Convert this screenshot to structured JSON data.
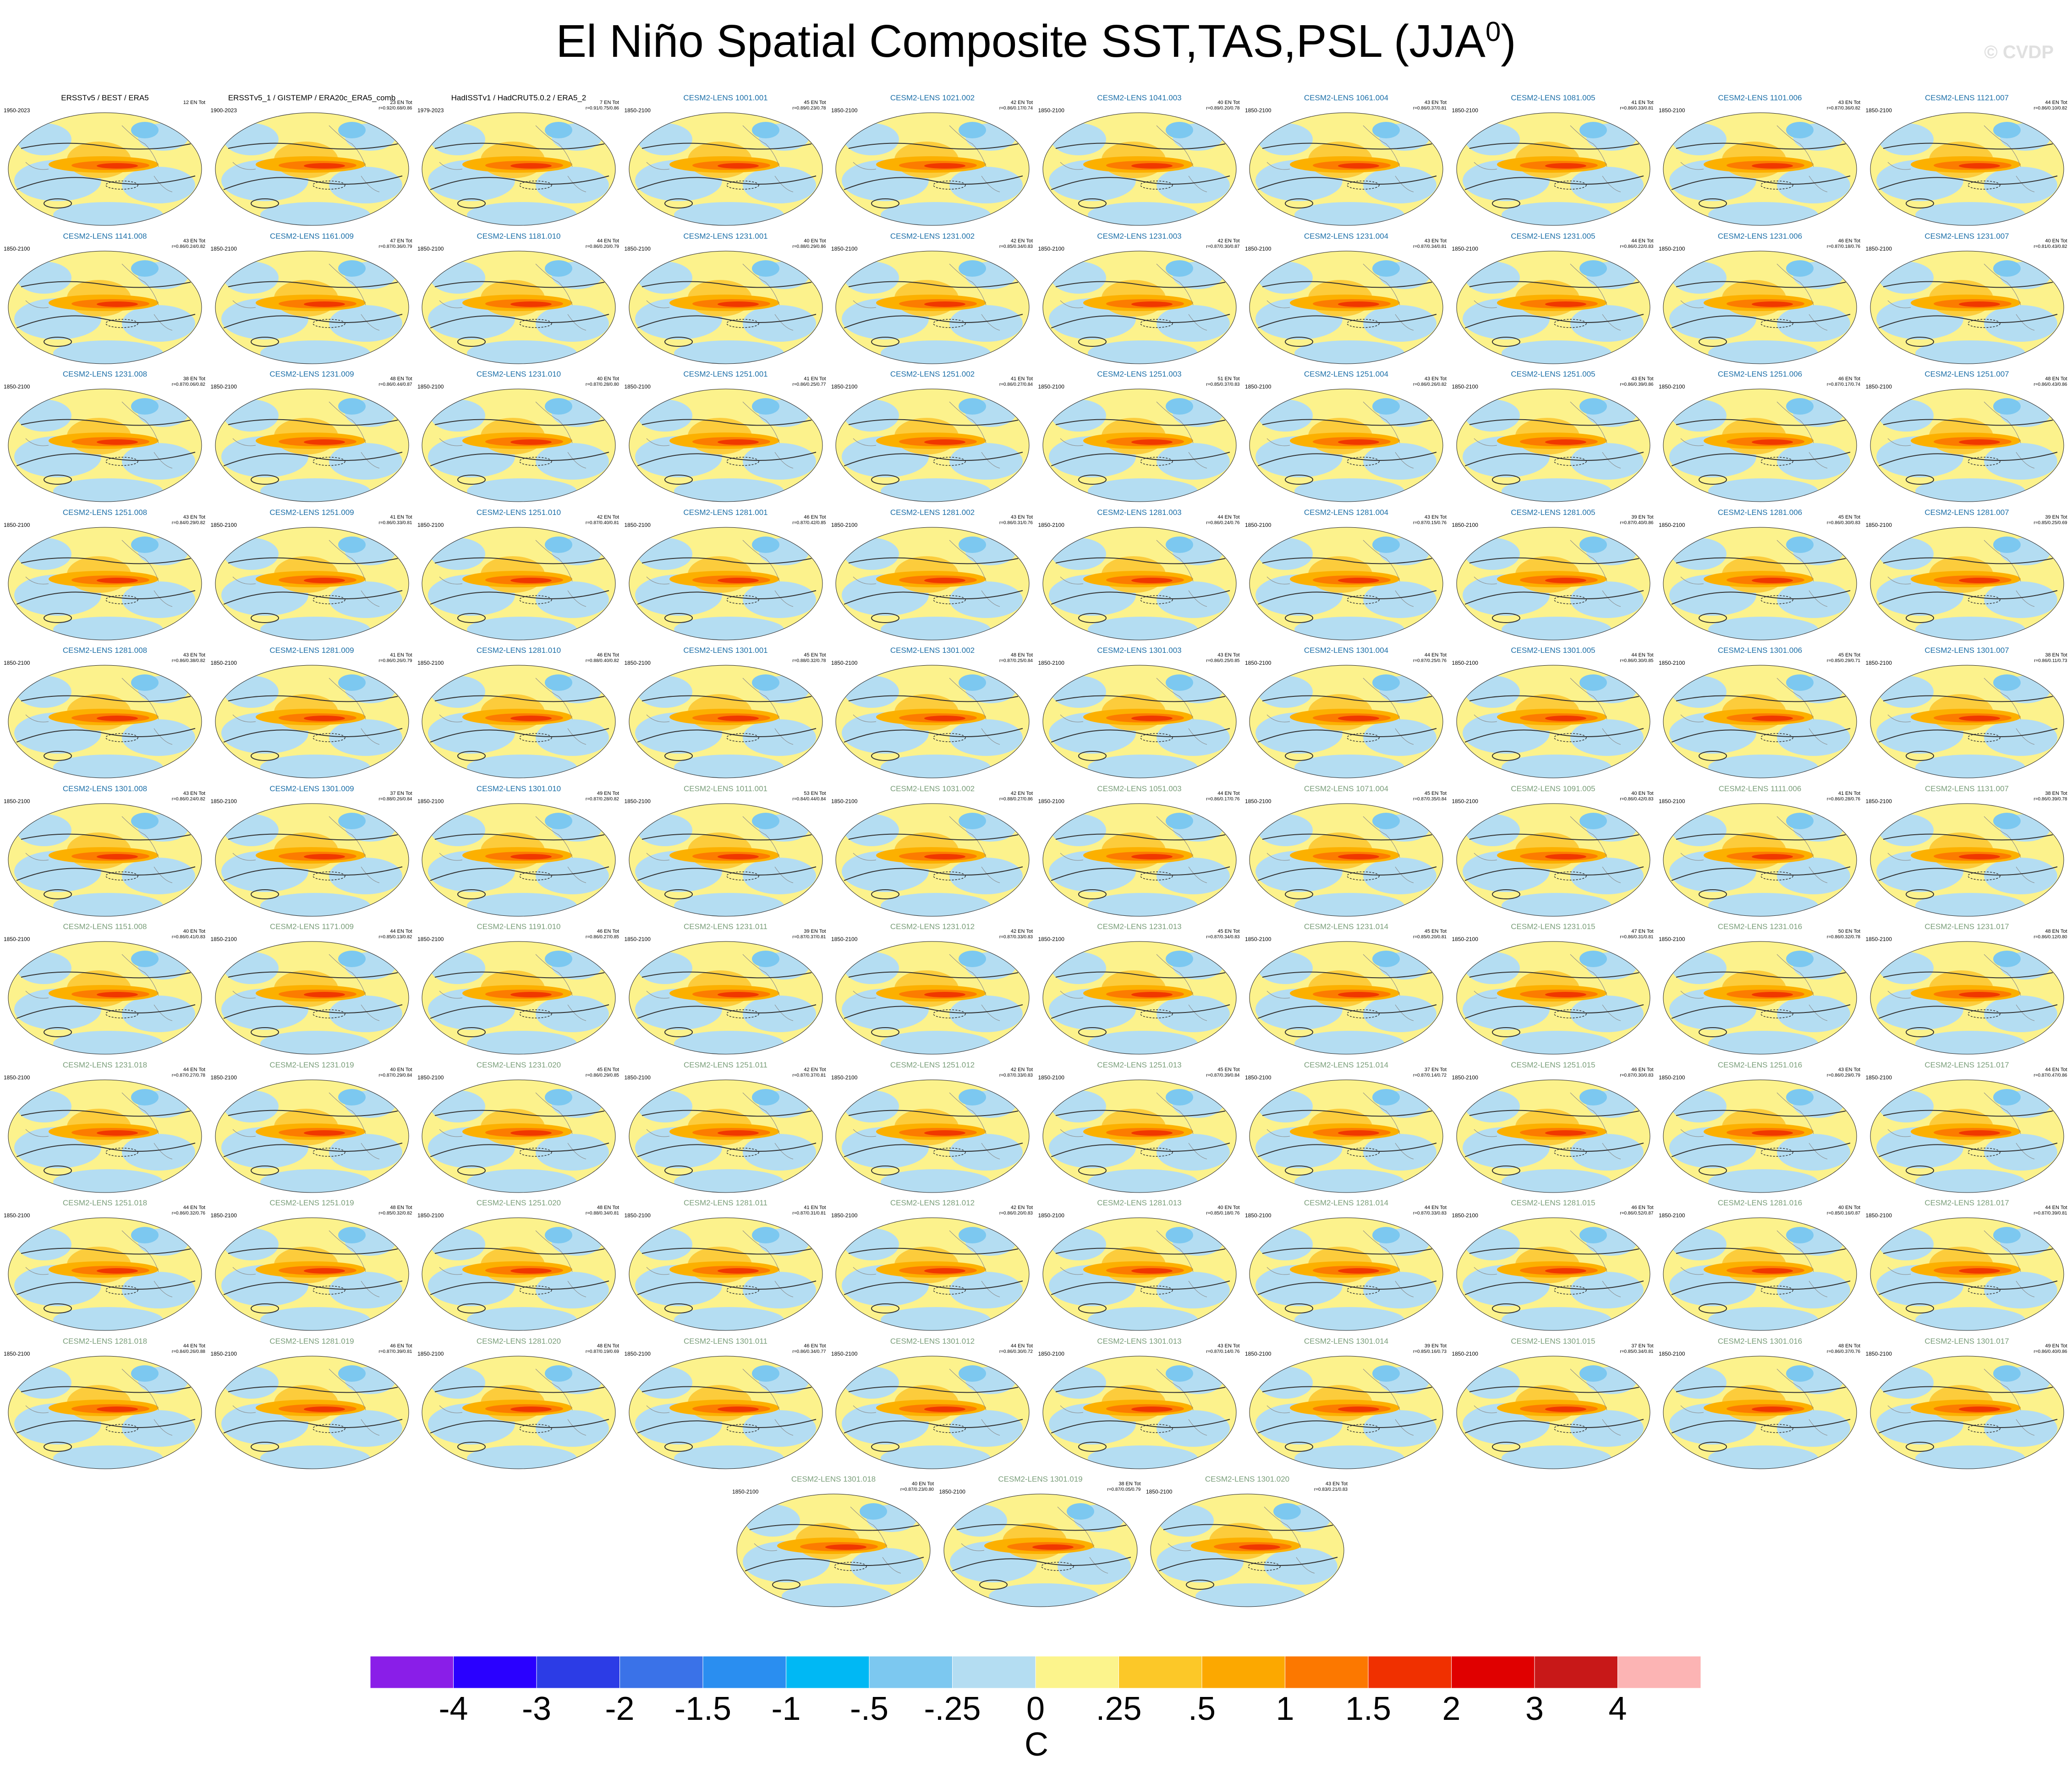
{
  "title": "El Niño Spatial Composite SST,TAS,PSL (JJA",
  "title_sup": "0",
  "title_close": ")",
  "watermark": "© CVDP",
  "panels": [
    {
      "title": "ERSSTv5 / BEST / ERA5",
      "years": "1950-2023",
      "count": "12 EN Tot",
      "r": "",
      "style": "obs"
    },
    {
      "title": "ERSSTv5_1 / GISTEMP / ERA20c_ERA5_comb",
      "years": "1900-2023",
      "count": "23 EN Tot",
      "r": "r=0.92/0.68/0.86",
      "style": "obs"
    },
    {
      "title": "HadISSTv1 / HadCRUT5.0.2 / ERA5_2",
      "years": "1979-2023",
      "count": "7 EN Tot",
      "r": "r=0.91/0.75/0.86",
      "style": "obs"
    },
    {
      "title": "CESM2-LENS 1001.001",
      "years": "1850-2100",
      "count": "45 EN Tot",
      "r": "r=0.89/0.23/0.78",
      "style": "c1"
    },
    {
      "title": "CESM2-LENS 1021.002",
      "years": "1850-2100",
      "count": "42 EN Tot",
      "r": "r=0.86/0.17/0.74",
      "style": "c1"
    },
    {
      "title": "CESM2-LENS 1041.003",
      "years": "1850-2100",
      "count": "40 EN Tot",
      "r": "r=0.89/0.20/0.78",
      "style": "c1"
    },
    {
      "title": "CESM2-LENS 1061.004",
      "years": "1850-2100",
      "count": "43 EN Tot",
      "r": "r=0.86/0.37/0.81",
      "style": "c1"
    },
    {
      "title": "CESM2-LENS 1081.005",
      "years": "1850-2100",
      "count": "41 EN Tot",
      "r": "r=0.86/0.33/0.81",
      "style": "c1"
    },
    {
      "title": "CESM2-LENS 1101.006",
      "years": "1850-2100",
      "count": "43 EN Tot",
      "r": "r=0.87/0.36/0.82",
      "style": "c1"
    },
    {
      "title": "CESM2-LENS 1121.007",
      "years": "1850-2100",
      "count": "44 EN Tot",
      "r": "r=0.86/0.10/0.82",
      "style": "c1"
    },
    {
      "title": "CESM2-LENS 1141.008",
      "years": "1850-2100",
      "count": "43 EN Tot",
      "r": "r=0.86/0.24/0.82",
      "style": "c1"
    },
    {
      "title": "CESM2-LENS 1161.009",
      "years": "1850-2100",
      "count": "47 EN Tot",
      "r": "r=0.87/0.36/0.79",
      "style": "c1"
    },
    {
      "title": "CESM2-LENS 1181.010",
      "years": "1850-2100",
      "count": "44 EN Tot",
      "r": "r=0.86/0.20/0.79",
      "style": "c1"
    },
    {
      "title": "CESM2-LENS 1231.001",
      "years": "1850-2100",
      "count": "40 EN Tot",
      "r": "r=0.88/0.29/0.86",
      "style": "c1"
    },
    {
      "title": "CESM2-LENS 1231.002",
      "years": "1850-2100",
      "count": "42 EN Tot",
      "r": "r=0.85/0.34/0.83",
      "style": "c1"
    },
    {
      "title": "CESM2-LENS 1231.003",
      "years": "1850-2100",
      "count": "42 EN Tot",
      "r": "r=0.87/0.30/0.87",
      "style": "c1"
    },
    {
      "title": "CESM2-LENS 1231.004",
      "years": "1850-2100",
      "count": "43 EN Tot",
      "r": "r=0.87/0.34/0.81",
      "style": "c1"
    },
    {
      "title": "CESM2-LENS 1231.005",
      "years": "1850-2100",
      "count": "44 EN Tot",
      "r": "r=0.86/0.22/0.83",
      "style": "c1"
    },
    {
      "title": "CESM2-LENS 1231.006",
      "years": "1850-2100",
      "count": "46 EN Tot",
      "r": "r=0.87/0.18/0.76",
      "style": "c1"
    },
    {
      "title": "CESM2-LENS 1231.007",
      "years": "1850-2100",
      "count": "40 EN Tot",
      "r": "r=0.81/0.43/0.82",
      "style": "c1"
    },
    {
      "title": "CESM2-LENS 1231.008",
      "years": "1850-2100",
      "count": "38 EN Tot",
      "r": "r=0.87/0.06/0.82",
      "style": "c1"
    },
    {
      "title": "CESM2-LENS 1231.009",
      "years": "1850-2100",
      "count": "48 EN Tot",
      "r": "r=0.86/0.44/0.87",
      "style": "c1"
    },
    {
      "title": "CESM2-LENS 1231.010",
      "years": "1850-2100",
      "count": "40 EN Tot",
      "r": "r=0.87/0.28/0.80",
      "style": "c1"
    },
    {
      "title": "CESM2-LENS 1251.001",
      "years": "1850-2100",
      "count": "41 EN Tot",
      "r": "r=0.86/0.25/0.77",
      "style": "c1"
    },
    {
      "title": "CESM2-LENS 1251.002",
      "years": "1850-2100",
      "count": "41 EN Tot",
      "r": "r=0.86/0.27/0.84",
      "style": "c1"
    },
    {
      "title": "CESM2-LENS 1251.003",
      "years": "1850-2100",
      "count": "51 EN Tot",
      "r": "r=0.85/0.37/0.83",
      "style": "c1"
    },
    {
      "title": "CESM2-LENS 1251.004",
      "years": "1850-2100",
      "count": "43 EN Tot",
      "r": "r=0.86/0.26/0.82",
      "style": "c1"
    },
    {
      "title": "CESM2-LENS 1251.005",
      "years": "1850-2100",
      "count": "43 EN Tot",
      "r": "r=0.86/0.39/0.86",
      "style": "c1"
    },
    {
      "title": "CESM2-LENS 1251.006",
      "years": "1850-2100",
      "count": "46 EN Tot",
      "r": "r=0.87/0.17/0.74",
      "style": "c1"
    },
    {
      "title": "CESM2-LENS 1251.007",
      "years": "1850-2100",
      "count": "48 EN Tot",
      "r": "r=0.86/0.43/0.86",
      "style": "c1"
    },
    {
      "title": "CESM2-LENS 1251.008",
      "years": "1850-2100",
      "count": "43 EN Tot",
      "r": "r=0.84/0.29/0.82",
      "style": "c1"
    },
    {
      "title": "CESM2-LENS 1251.009",
      "years": "1850-2100",
      "count": "41 EN Tot",
      "r": "r=0.86/0.33/0.81",
      "style": "c1"
    },
    {
      "title": "CESM2-LENS 1251.010",
      "years": "1850-2100",
      "count": "42 EN Tot",
      "r": "r=0.87/0.40/0.81",
      "style": "c1"
    },
    {
      "title": "CESM2-LENS 1281.001",
      "years": "1850-2100",
      "count": "46 EN Tot",
      "r": "r=0.87/0.42/0.85",
      "style": "c1"
    },
    {
      "title": "CESM2-LENS 1281.002",
      "years": "1850-2100",
      "count": "43 EN Tot",
      "r": "r=0.86/0.31/0.76",
      "style": "c1"
    },
    {
      "title": "CESM2-LENS 1281.003",
      "years": "1850-2100",
      "count": "44 EN Tot",
      "r": "r=0.86/0.24/0.76",
      "style": "c1"
    },
    {
      "title": "CESM2-LENS 1281.004",
      "years": "1850-2100",
      "count": "43 EN Tot",
      "r": "r=0.87/0.15/0.76",
      "style": "c1"
    },
    {
      "title": "CESM2-LENS 1281.005",
      "years": "1850-2100",
      "count": "39 EN Tot",
      "r": "r=0.87/0.40/0.86",
      "style": "c1"
    },
    {
      "title": "CESM2-LENS 1281.006",
      "years": "1850-2100",
      "count": "45 EN Tot",
      "r": "r=0.86/0.30/0.83",
      "style": "c1"
    },
    {
      "title": "CESM2-LENS 1281.007",
      "years": "1850-2100",
      "count": "39 EN Tot",
      "r": "r=0.85/0.25/0.69",
      "style": "c1"
    },
    {
      "title": "CESM2-LENS 1281.008",
      "years": "1850-2100",
      "count": "43 EN Tot",
      "r": "r=0.86/0.38/0.82",
      "style": "c1"
    },
    {
      "title": "CESM2-LENS 1281.009",
      "years": "1850-2100",
      "count": "41 EN Tot",
      "r": "r=0.86/0.26/0.79",
      "style": "c1"
    },
    {
      "title": "CESM2-LENS 1281.010",
      "years": "1850-2100",
      "count": "46 EN Tot",
      "r": "r=0.88/0.40/0.82",
      "style": "c1"
    },
    {
      "title": "CESM2-LENS 1301.001",
      "years": "1850-2100",
      "count": "45 EN Tot",
      "r": "r=0.88/0.32/0.78",
      "style": "c1"
    },
    {
      "title": "CESM2-LENS 1301.002",
      "years": "1850-2100",
      "count": "48 EN Tot",
      "r": "r=0.87/0.25/0.84",
      "style": "c1"
    },
    {
      "title": "CESM2-LENS 1301.003",
      "years": "1850-2100",
      "count": "43 EN Tot",
      "r": "r=0.86/0.25/0.85",
      "style": "c1"
    },
    {
      "title": "CESM2-LENS 1301.004",
      "years": "1850-2100",
      "count": "44 EN Tot",
      "r": "r=0.87/0.25/0.76",
      "style": "c1"
    },
    {
      "title": "CESM2-LENS 1301.005",
      "years": "1850-2100",
      "count": "44 EN Tot",
      "r": "r=0.86/0.30/0.85",
      "style": "c1"
    },
    {
      "title": "CESM2-LENS 1301.006",
      "years": "1850-2100",
      "count": "45 EN Tot",
      "r": "r=0.85/0.29/0.71",
      "style": "c1"
    },
    {
      "title": "CESM2-LENS 1301.007",
      "years": "1850-2100",
      "count": "38 EN Tot",
      "r": "r=0.86/0.11/0.73",
      "style": "c1"
    },
    {
      "title": "CESM2-LENS 1301.008",
      "years": "1850-2100",
      "count": "43 EN Tot",
      "r": "r=0.86/0.24/0.82",
      "style": "c1"
    },
    {
      "title": "CESM2-LENS 1301.009",
      "years": "1850-2100",
      "count": "37 EN Tot",
      "r": "r=0.88/0.26/0.84",
      "style": "c1"
    },
    {
      "title": "CESM2-LENS 1301.010",
      "years": "1850-2100",
      "count": "49 EN Tot",
      "r": "r=0.87/0.28/0.82",
      "style": "c1"
    },
    {
      "title": "CESM2-LENS 1011.001",
      "years": "1850-2100",
      "count": "53 EN Tot",
      "r": "r=0.84/0.44/0.84",
      "style": "c2"
    },
    {
      "title": "CESM2-LENS 1031.002",
      "years": "1850-2100",
      "count": "42 EN Tot",
      "r": "r=0.88/0.27/0.86",
      "style": "c2"
    },
    {
      "title": "CESM2-LENS 1051.003",
      "years": "1850-2100",
      "count": "44 EN Tot",
      "r": "r=0.86/0.17/0.76",
      "style": "c2"
    },
    {
      "title": "CESM2-LENS 1071.004",
      "years": "1850-2100",
      "count": "45 EN Tot",
      "r": "r=0.87/0.35/0.84",
      "style": "c2"
    },
    {
      "title": "CESM2-LENS 1091.005",
      "years": "1850-2100",
      "count": "40 EN Tot",
      "r": "r=0.86/0.42/0.83",
      "style": "c2"
    },
    {
      "title": "CESM2-LENS 1111.006",
      "years": "1850-2100",
      "count": "41 EN Tot",
      "r": "r=0.86/0.28/0.76",
      "style": "c2"
    },
    {
      "title": "CESM2-LENS 1131.007",
      "years": "1850-2100",
      "count": "38 EN Tot",
      "r": "r=0.86/0.39/0.78",
      "style": "c2"
    },
    {
      "title": "CESM2-LENS 1151.008",
      "years": "1850-2100",
      "count": "40 EN Tot",
      "r": "r=0.86/0.41/0.83",
      "style": "c2"
    },
    {
      "title": "CESM2-LENS 1171.009",
      "years": "1850-2100",
      "count": "44 EN Tot",
      "r": "r=0.85/0.13/0.82",
      "style": "c2"
    },
    {
      "title": "CESM2-LENS 1191.010",
      "years": "1850-2100",
      "count": "46 EN Tot",
      "r": "r=0.86/0.27/0.85",
      "style": "c2"
    },
    {
      "title": "CESM2-LENS 1231.011",
      "years": "1850-2100",
      "count": "39 EN Tot",
      "r": "r=0.87/0.37/0.81",
      "style": "c2"
    },
    {
      "title": "CESM2-LENS 1231.012",
      "years": "1850-2100",
      "count": "42 EN Tot",
      "r": "r=0.87/0.33/0.83",
      "style": "c2"
    },
    {
      "title": "CESM2-LENS 1231.013",
      "years": "1850-2100",
      "count": "45 EN Tot",
      "r": "r=0.87/0.34/0.83",
      "style": "c2"
    },
    {
      "title": "CESM2-LENS 1231.014",
      "years": "1850-2100",
      "count": "45 EN Tot",
      "r": "r=0.85/0.20/0.81",
      "style": "c2"
    },
    {
      "title": "CESM2-LENS 1231.015",
      "years": "1850-2100",
      "count": "47 EN Tot",
      "r": "r=0.86/0.31/0.81",
      "style": "c2"
    },
    {
      "title": "CESM2-LENS 1231.016",
      "years": "1850-2100",
      "count": "50 EN Tot",
      "r": "r=0.86/0.32/0.78",
      "style": "c2"
    },
    {
      "title": "CESM2-LENS 1231.017",
      "years": "1850-2100",
      "count": "48 EN Tot",
      "r": "r=0.86/0.12/0.80",
      "style": "c2"
    },
    {
      "title": "CESM2-LENS 1231.018",
      "years": "1850-2100",
      "count": "44 EN Tot",
      "r": "r=0.87/0.27/0.78",
      "style": "c2"
    },
    {
      "title": "CESM2-LENS 1231.019",
      "years": "1850-2100",
      "count": "40 EN Tot",
      "r": "r=0.87/0.29/0.84",
      "style": "c2"
    },
    {
      "title": "CESM2-LENS 1231.020",
      "years": "1850-2100",
      "count": "45 EN Tot",
      "r": "r=0.86/0.29/0.85",
      "style": "c2"
    },
    {
      "title": "CESM2-LENS 1251.011",
      "years": "1850-2100",
      "count": "42 EN Tot",
      "r": "r=0.87/0.37/0.81",
      "style": "c2"
    },
    {
      "title": "CESM2-LENS 1251.012",
      "years": "1850-2100",
      "count": "42 EN Tot",
      "r": "r=0.87/0.33/0.83",
      "style": "c2"
    },
    {
      "title": "CESM2-LENS 1251.013",
      "years": "1850-2100",
      "count": "45 EN Tot",
      "r": "r=0.87/0.39/0.84",
      "style": "c2"
    },
    {
      "title": "CESM2-LENS 1251.014",
      "years": "1850-2100",
      "count": "37 EN Tot",
      "r": "r=0.87/0.14/0.72",
      "style": "c2"
    },
    {
      "title": "CESM2-LENS 1251.015",
      "years": "1850-2100",
      "count": "46 EN Tot",
      "r": "r=0.87/0.30/0.83",
      "style": "c2"
    },
    {
      "title": "CESM2-LENS 1251.016",
      "years": "1850-2100",
      "count": "43 EN Tot",
      "r": "r=0.86/0.29/0.79",
      "style": "c2"
    },
    {
      "title": "CESM2-LENS 1251.017",
      "years": "1850-2100",
      "count": "44 EN Tot",
      "r": "r=0.87/0.47/0.86",
      "style": "c2"
    },
    {
      "title": "CESM2-LENS 1251.018",
      "years": "1850-2100",
      "count": "44 EN Tot",
      "r": "r=0.86/0.32/0.76",
      "style": "c2"
    },
    {
      "title": "CESM2-LENS 1251.019",
      "years": "1850-2100",
      "count": "48 EN Tot",
      "r": "r=0.85/0.32/0.82",
      "style": "c2"
    },
    {
      "title": "CESM2-LENS 1251.020",
      "years": "1850-2100",
      "count": "48 EN Tot",
      "r": "r=0.88/0.34/0.81",
      "style": "c2"
    },
    {
      "title": "CESM2-LENS 1281.011",
      "years": "1850-2100",
      "count": "41 EN Tot",
      "r": "r=0.87/0.31/0.81",
      "style": "c2"
    },
    {
      "title": "CESM2-LENS 1281.012",
      "years": "1850-2100",
      "count": "42 EN Tot",
      "r": "r=0.86/0.20/0.83",
      "style": "c2"
    },
    {
      "title": "CESM2-LENS 1281.013",
      "years": "1850-2100",
      "count": "40 EN Tot",
      "r": "r=0.85/0.18/0.76",
      "style": "c2"
    },
    {
      "title": "CESM2-LENS 1281.014",
      "years": "1850-2100",
      "count": "44 EN Tot",
      "r": "r=0.87/0.33/0.83",
      "style": "c2"
    },
    {
      "title": "CESM2-LENS 1281.015",
      "years": "1850-2100",
      "count": "46 EN Tot",
      "r": "r=0.86/0.52/0.87",
      "style": "c2"
    },
    {
      "title": "CESM2-LENS 1281.016",
      "years": "1850-2100",
      "count": "40 EN Tot",
      "r": "r=0.85/0.16/0.87",
      "style": "c2"
    },
    {
      "title": "CESM2-LENS 1281.017",
      "years": "1850-2100",
      "count": "44 EN Tot",
      "r": "r=0.87/0.39/0.81",
      "style": "c2"
    },
    {
      "title": "CESM2-LENS 1281.018",
      "years": "1850-2100",
      "count": "44 EN Tot",
      "r": "r=0.84/0.26/0.88",
      "style": "c2"
    },
    {
      "title": "CESM2-LENS 1281.019",
      "years": "1850-2100",
      "count": "46 EN Tot",
      "r": "r=0.87/0.39/0.81",
      "style": "c2"
    },
    {
      "title": "CESM2-LENS 1281.020",
      "years": "1850-2100",
      "count": "48 EN Tot",
      "r": "r=0.87/0.19/0.69",
      "style": "c2"
    },
    {
      "title": "CESM2-LENS 1301.011",
      "years": "1850-2100",
      "count": "46 EN Tot",
      "r": "r=0.86/0.34/0.77",
      "style": "c2"
    },
    {
      "title": "CESM2-LENS 1301.012",
      "years": "1850-2100",
      "count": "44 EN Tot",
      "r": "r=0.86/0.30/0.72",
      "style": "c2"
    },
    {
      "title": "CESM2-LENS 1301.013",
      "years": "1850-2100",
      "count": "43 EN Tot",
      "r": "r=0.87/0.14/0.76",
      "style": "c2"
    },
    {
      "title": "CESM2-LENS 1301.014",
      "years": "1850-2100",
      "count": "39 EN Tot",
      "r": "r=0.85/0.16/0.73",
      "style": "c2"
    },
    {
      "title": "CESM2-LENS 1301.015",
      "years": "1850-2100",
      "count": "37 EN Tot",
      "r": "r=0.85/0.34/0.81",
      "style": "c2"
    },
    {
      "title": "CESM2-LENS 1301.016",
      "years": "1850-2100",
      "count": "48 EN Tot",
      "r": "r=0.86/0.37/0.76",
      "style": "c2"
    },
    {
      "title": "CESM2-LENS 1301.017",
      "years": "1850-2100",
      "count": "49 EN Tot",
      "r": "r=0.86/0.40/0.86",
      "style": "c2"
    },
    {
      "title": "CESM2-LENS 1301.018",
      "years": "1850-2100",
      "count": "40 EN Tot",
      "r": "r=0.87/0.23/0.80",
      "style": "c2"
    },
    {
      "title": "CESM2-LENS 1301.019",
      "years": "1850-2100",
      "count": "38 EN Tot",
      "r": "r=0.87/0.05/0.79",
      "style": "c2"
    },
    {
      "title": "CESM2-LENS 1301.020",
      "years": "1850-2100",
      "count": "43 EN Tot",
      "r": "r=0.83/0.21/0.83",
      "style": "c2"
    }
  ],
  "colorbar": {
    "colors": [
      "#8a1ee8",
      "#2a00ff",
      "#2c3ce6",
      "#3a72e8",
      "#2a8ef0",
      "#00b8f4",
      "#7cc8f0",
      "#b4ddf2",
      "#fcf48c",
      "#fcc828",
      "#fca800",
      "#fc7800",
      "#f03000",
      "#e00000",
      "#c81818",
      "#fcb4b4"
    ],
    "labels": [
      "-4",
      "-3",
      "-2",
      "-1.5",
      "-1",
      "-.5",
      "-.25",
      "0",
      ".25",
      ".5",
      "1",
      "1.5",
      "2",
      "3",
      "4"
    ],
    "units": "C"
  }
}
